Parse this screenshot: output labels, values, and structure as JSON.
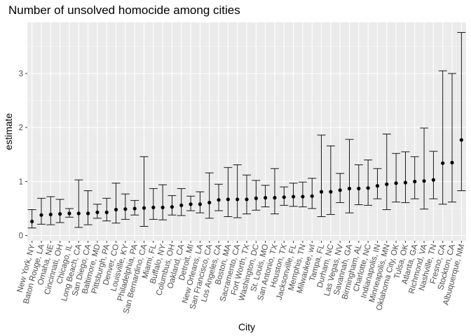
{
  "chart_data": {
    "type": "errorbar",
    "title": "Number of unsolved homocide among cities",
    "xlabel": "City",
    "ylabel": "estimate",
    "ylim": [
      -0.1,
      3.95
    ],
    "yticks": [
      0,
      1,
      2,
      3
    ],
    "grid": true,
    "colors": {
      "panel": "#ebebeb",
      "grid_major": "#ffffff",
      "point": "#000000"
    },
    "points": [
      {
        "city": "New York, NY",
        "estimate": 0.26,
        "low": 0.14,
        "high": 0.48
      },
      {
        "city": "Baton Rouge, LA",
        "estimate": 0.38,
        "low": 0.21,
        "high": 0.69
      },
      {
        "city": "Omaha, NE",
        "estimate": 0.39,
        "low": 0.2,
        "high": 0.72
      },
      {
        "city": "Cincinnati, OH",
        "estimate": 0.4,
        "low": 0.24,
        "high": 0.67
      },
      {
        "city": "Chicago, IL",
        "estimate": 0.41,
        "low": 0.34,
        "high": 0.5
      },
      {
        "city": "Long Beach, CA",
        "estimate": 0.41,
        "low": 0.15,
        "high": 1.03
      },
      {
        "city": "San Diego, CA",
        "estimate": 0.41,
        "low": 0.2,
        "high": 0.83
      },
      {
        "city": "Baltimore, MD",
        "estimate": 0.43,
        "low": 0.32,
        "high": 0.58
      },
      {
        "city": "Pittsburgh, PA",
        "estimate": 0.43,
        "low": 0.27,
        "high": 0.69
      },
      {
        "city": "Denver, CO",
        "estimate": 0.48,
        "low": 0.23,
        "high": 0.97
      },
      {
        "city": "Louisville, KY",
        "estimate": 0.49,
        "low": 0.3,
        "high": 0.77
      },
      {
        "city": "Philadelphia, PA",
        "estimate": 0.5,
        "low": 0.38,
        "high": 0.65
      },
      {
        "city": "San Bernardino, CA",
        "estimate": 0.51,
        "low": 0.17,
        "high": 1.46
      },
      {
        "city": "Miami, FL",
        "estimate": 0.52,
        "low": 0.3,
        "high": 0.87
      },
      {
        "city": "Buffalo, NY",
        "estimate": 0.52,
        "low": 0.29,
        "high": 0.94
      },
      {
        "city": "Columbus, OH",
        "estimate": 0.53,
        "low": 0.38,
        "high": 0.74
      },
      {
        "city": "Oakland, CA",
        "estimate": 0.56,
        "low": 0.37,
        "high": 0.87
      },
      {
        "city": "Detroit, MI",
        "estimate": 0.58,
        "low": 0.46,
        "high": 0.73
      },
      {
        "city": "New Orleans, LA",
        "estimate": 0.58,
        "low": 0.42,
        "high": 0.81
      },
      {
        "city": "San Francisco, CA",
        "estimate": 0.61,
        "low": 0.32,
        "high": 1.16
      },
      {
        "city": "Los Angeles, CA",
        "estimate": 0.66,
        "low": 0.46,
        "high": 0.95
      },
      {
        "city": "Boston, MA",
        "estimate": 0.67,
        "low": 0.35,
        "high": 1.26
      },
      {
        "city": "Sacramento, CA",
        "estimate": 0.67,
        "low": 0.33,
        "high": 1.31
      },
      {
        "city": "Fort Worth, TX",
        "estimate": 0.67,
        "low": 0.4,
        "high": 1.12
      },
      {
        "city": "Washington, DC",
        "estimate": 0.69,
        "low": 0.47,
        "high": 1.02
      },
      {
        "city": "St. Louis, MO",
        "estimate": 0.7,
        "low": 0.53,
        "high": 0.93
      },
      {
        "city": "San Antonio, TX",
        "estimate": 0.7,
        "low": 0.4,
        "high": 1.24
      },
      {
        "city": "Houston, TX",
        "estimate": 0.71,
        "low": 0.56,
        "high": 0.9
      },
      {
        "city": "Jacksonville, FL",
        "estimate": 0.72,
        "low": 0.54,
        "high": 0.97
      },
      {
        "city": "Memphis, TN",
        "estimate": 0.72,
        "low": 0.53,
        "high": 0.99
      },
      {
        "city": "Milwaukee, wI",
        "estimate": 0.73,
        "low": 0.5,
        "high": 1.06
      },
      {
        "city": "Tampa, FL",
        "estimate": 0.81,
        "low": 0.35,
        "high": 1.86
      },
      {
        "city": "Durham, NC",
        "estimate": 0.81,
        "low": 0.39,
        "high": 1.66
      },
      {
        "city": "Las Vegas, NV",
        "estimate": 0.84,
        "low": 0.61,
        "high": 1.15
      },
      {
        "city": "Savannah, GA",
        "estimate": 0.87,
        "low": 0.42,
        "high": 1.78
      },
      {
        "city": "Birmingham, AL",
        "estimate": 0.87,
        "low": 0.57,
        "high": 1.31
      },
      {
        "city": "Charlotte, NC",
        "estimate": 0.88,
        "low": 0.56,
        "high": 1.4
      },
      {
        "city": "Indianapolis, IN",
        "estimate": 0.92,
        "low": 0.68,
        "high": 1.24
      },
      {
        "city": "Minneapolis, MN",
        "estimate": 0.95,
        "low": 0.48,
        "high": 1.88
      },
      {
        "city": "Oklahoma City, OK",
        "estimate": 0.97,
        "low": 0.62,
        "high": 1.52
      },
      {
        "city": "Tulsa, OK",
        "estimate": 0.98,
        "low": 0.61,
        "high": 1.55
      },
      {
        "city": "Atlanta, GA",
        "estimate": 1.0,
        "low": 0.68,
        "high": 1.46
      },
      {
        "city": "Richmond, VA",
        "estimate": 1.01,
        "low": 0.49,
        "high": 1.99
      },
      {
        "city": "Nashville, TN",
        "estimate": 1.03,
        "low": 0.68,
        "high": 1.56
      },
      {
        "city": "Fresno, CA",
        "estimate": 1.34,
        "low": 0.58,
        "high": 3.05
      },
      {
        "city": "Stockton, CA",
        "estimate": 1.35,
        "low": 0.62,
        "high": 3.0
      },
      {
        "city": "Albuquerque, NM",
        "estimate": 1.77,
        "low": 0.83,
        "high": 3.76
      }
    ]
  }
}
